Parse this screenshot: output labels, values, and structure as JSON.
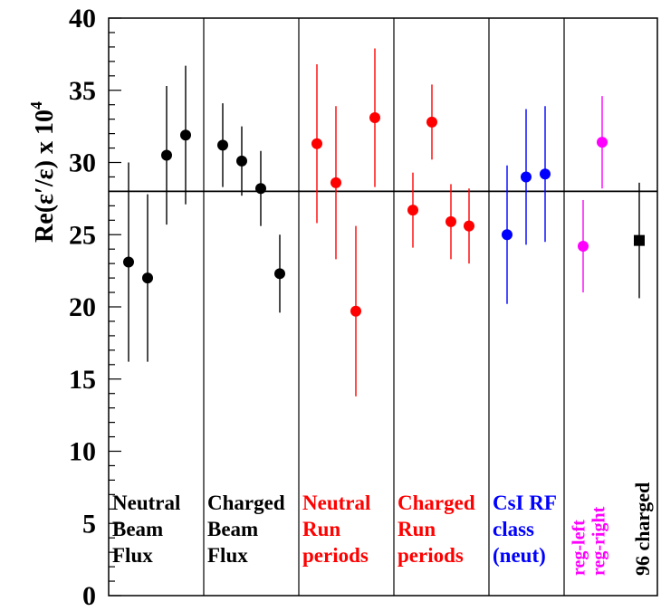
{
  "chart_data": {
    "type": "scatter",
    "title": "",
    "xlabel": "",
    "ylabel": "Re(ε′/ε) x 10",
    "ylabel_sup": "4",
    "ylim": [
      0,
      40
    ],
    "yticks": [
      0,
      5,
      10,
      15,
      20,
      25,
      30,
      35,
      40
    ],
    "reference_line": 28.0,
    "grid": false,
    "groups": [
      {
        "label_lines": [
          "Neutral",
          "Beam",
          "Flux"
        ],
        "color": "#000000",
        "label_orientation": "horizontal",
        "points": [
          {
            "value": 23.1,
            "err": 6.9
          },
          {
            "value": 22.0,
            "err": 5.8
          },
          {
            "value": 30.5,
            "err": 4.8
          },
          {
            "value": 31.9,
            "err": 4.8
          }
        ],
        "marker": "circle"
      },
      {
        "label_lines": [
          "Charged",
          "Beam",
          "Flux"
        ],
        "color": "#000000",
        "label_orientation": "horizontal",
        "points": [
          {
            "value": 31.2,
            "err": 2.9
          },
          {
            "value": 30.1,
            "err": 2.4
          },
          {
            "value": 28.2,
            "err": 2.6
          },
          {
            "value": 22.3,
            "err": 2.7
          }
        ],
        "marker": "circle"
      },
      {
        "label_lines": [
          "Neutral",
          "Run",
          "periods"
        ],
        "color": "#ff0000",
        "label_orientation": "horizontal",
        "points": [
          {
            "value": 31.3,
            "err": 5.5
          },
          {
            "value": 28.6,
            "err": 5.3
          },
          {
            "value": 19.7,
            "err": 5.9
          },
          {
            "value": 33.1,
            "err": 4.8
          }
        ],
        "marker": "circle"
      },
      {
        "label_lines": [
          "Charged",
          "Run",
          "periods"
        ],
        "color": "#ff0000",
        "label_orientation": "horizontal",
        "points": [
          {
            "value": 26.7,
            "err": 2.6
          },
          {
            "value": 32.8,
            "err": 2.6
          },
          {
            "value": 25.9,
            "err": 2.6
          },
          {
            "value": 25.6,
            "err": 2.6
          }
        ],
        "marker": "circle"
      },
      {
        "label_lines": [
          "CsI RF",
          "class",
          "(neut)"
        ],
        "color": "#0000ff",
        "label_orientation": "horizontal",
        "points": [
          {
            "value": 25.0,
            "err": 4.8
          },
          {
            "value": 29.0,
            "err": 4.7
          },
          {
            "value": 29.2,
            "err": 4.7
          }
        ],
        "marker": "circle"
      },
      {
        "label_lines": [
          "reg-left",
          "reg-right"
        ],
        "color": "#ff00ff",
        "label_orientation": "vertical",
        "points": [
          {
            "value": 24.2,
            "err": 3.2
          },
          {
            "value": 31.4,
            "err": 3.2
          }
        ],
        "marker": "circle"
      },
      {
        "label_lines": [
          "96 charged"
        ],
        "color": "#000000",
        "label_orientation": "vertical",
        "points": [
          {
            "value": 24.6,
            "err": 4.0
          }
        ],
        "marker": "square"
      }
    ]
  }
}
